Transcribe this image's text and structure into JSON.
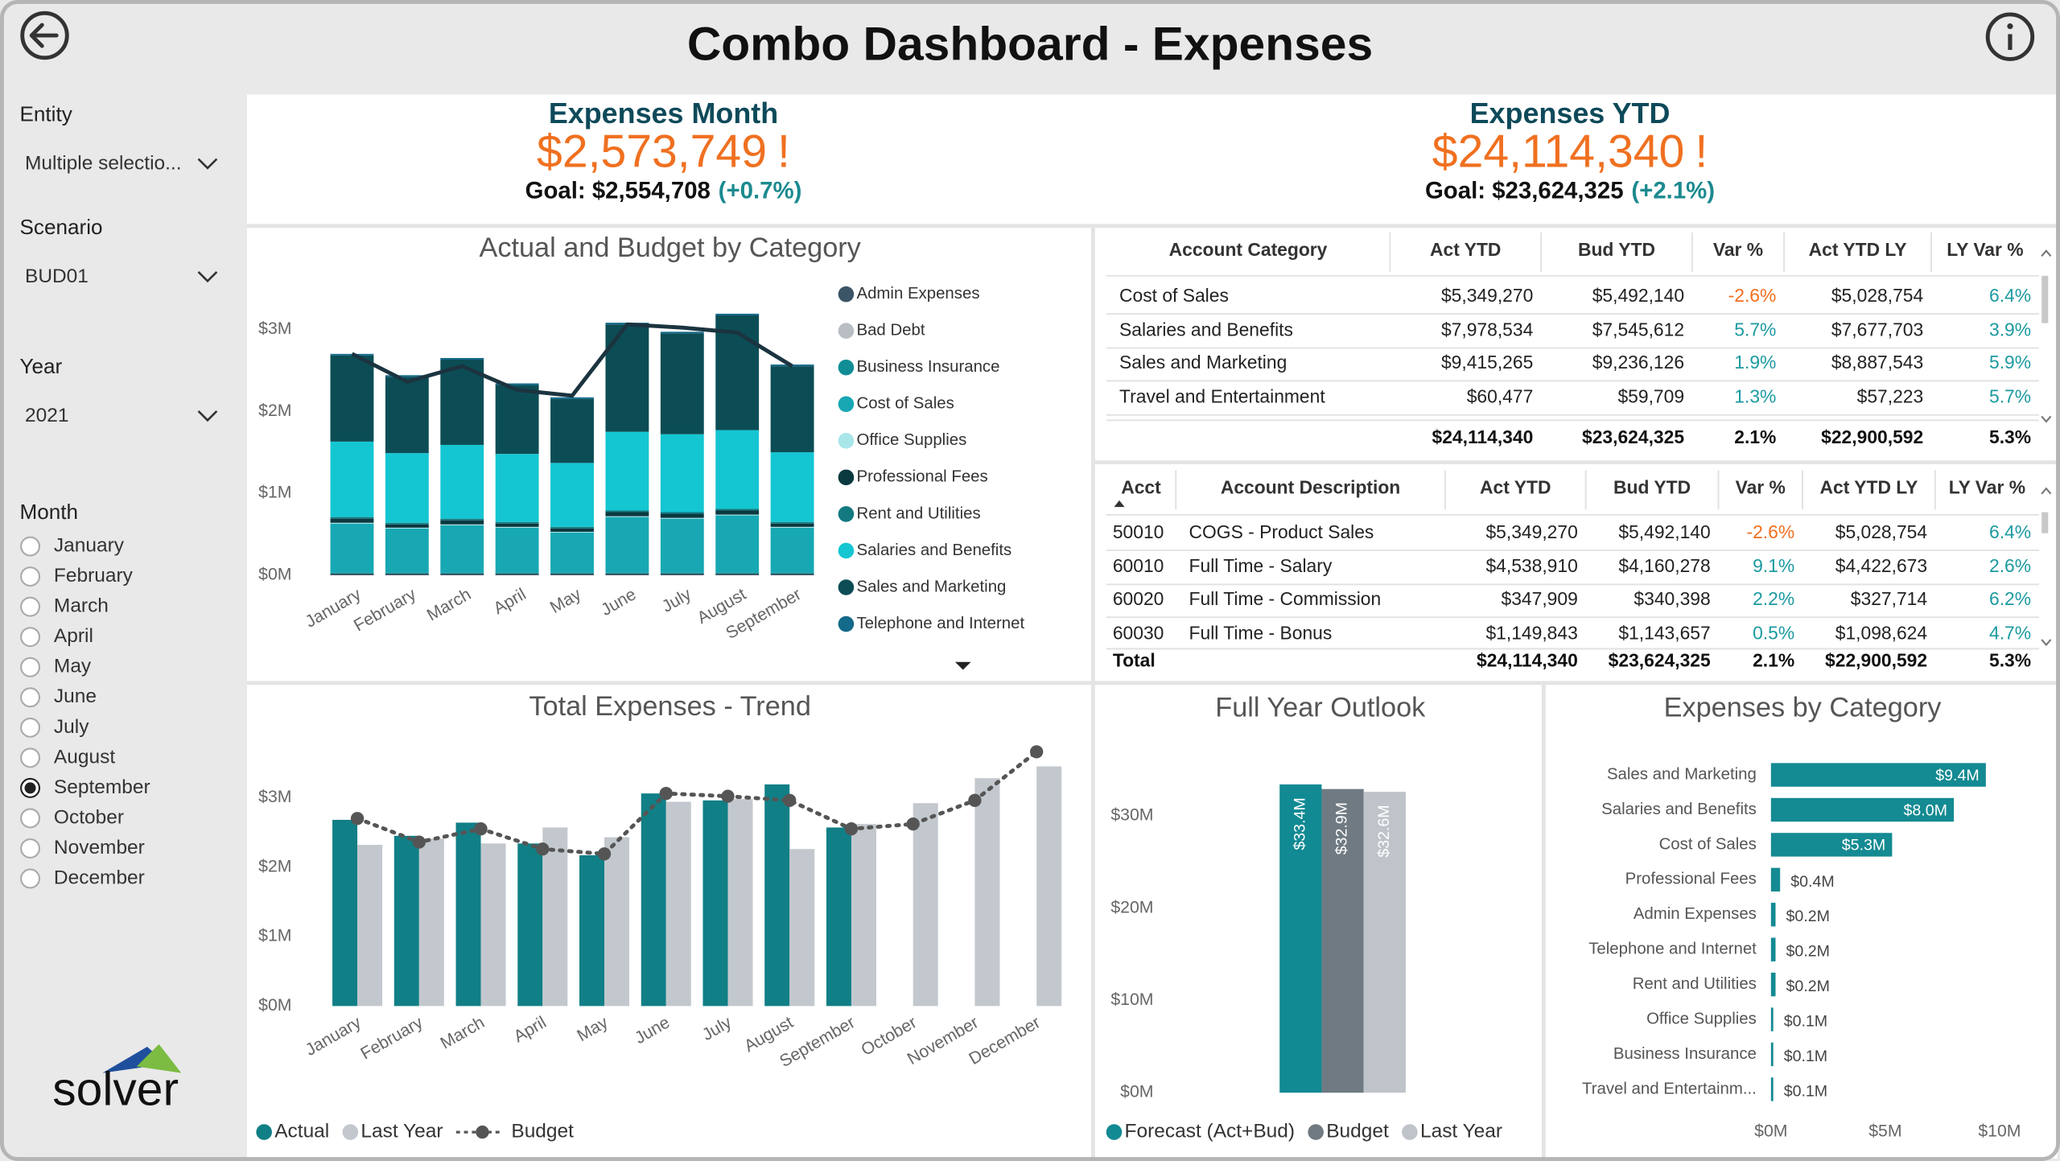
{
  "header": {
    "title": "Combo Dashboard - Expenses"
  },
  "slicers": {
    "entity": {
      "label": "Entity",
      "value": "Multiple selectio..."
    },
    "scenario": {
      "label": "Scenario",
      "value": "BUD01"
    },
    "year": {
      "label": "Year",
      "value": "2021"
    },
    "month": {
      "label": "Month",
      "options": [
        "January",
        "February",
        "March",
        "April",
        "May",
        "June",
        "July",
        "August",
        "September",
        "October",
        "November",
        "December"
      ],
      "selected": "September"
    }
  },
  "kpis": [
    {
      "title": "Expenses Month",
      "value": "$2,573,749",
      "alert": "!",
      "goal": "Goal: $2,554,708",
      "change": "(+0.7%)"
    },
    {
      "title": "Expenses YTD",
      "value": "$24,114,340",
      "alert": "!",
      "goal": "Goal: $23,624,325",
      "change": "(+2.1%)"
    }
  ],
  "tables": [
    {
      "columns": [
        "Account Category",
        "Act YTD",
        "Bud YTD",
        "Var %",
        "Act YTD LY",
        "LY Var %"
      ],
      "rows": [
        [
          "Cost of Sales",
          "$5,349,270",
          "$5,492,140",
          "-2.6%",
          "$5,028,754",
          "6.4%"
        ],
        [
          "Salaries and Benefits",
          "$7,978,534",
          "$7,545,612",
          "5.7%",
          "$7,677,703",
          "3.9%"
        ],
        [
          "Sales and Marketing",
          "$9,415,265",
          "$9,236,126",
          "1.9%",
          "$8,887,543",
          "5.9%"
        ],
        [
          "Travel and Entertainment",
          "$60,477",
          "$59,709",
          "1.3%",
          "$57,223",
          "5.7%"
        ]
      ],
      "total": [
        "$24,114,340",
        "$23,624,325",
        "2.1%",
        "$22,900,592",
        "5.3%"
      ]
    },
    {
      "columns": [
        "Acct",
        "Account Description",
        "Act YTD",
        "Bud YTD",
        "Var %",
        "Act YTD LY",
        "LY Var %"
      ],
      "rows": [
        [
          "50010",
          "COGS - Product Sales",
          "$5,349,270",
          "$5,492,140",
          "-2.6%",
          "$5,028,754",
          "6.4%"
        ],
        [
          "60010",
          "Full Time - Salary",
          "$4,538,910",
          "$4,160,278",
          "9.1%",
          "$4,422,673",
          "2.6%"
        ],
        [
          "60020",
          "Full Time - Commission",
          "$347,909",
          "$340,398",
          "2.2%",
          "$327,714",
          "6.2%"
        ],
        [
          "60030",
          "Full Time - Bonus",
          "$1,149,843",
          "$1,143,657",
          "0.5%",
          "$1,098,624",
          "4.7%"
        ]
      ],
      "total": [
        "Total",
        "$24,114,340",
        "$23,624,325",
        "2.1%",
        "$22,900,592",
        "5.3%"
      ]
    }
  ],
  "logo": {
    "text": "solver"
  },
  "chart_data": [
    {
      "type": "stacked_bar_line",
      "title": "Actual and Budget by Category",
      "categories": [
        "January",
        "February",
        "March",
        "April",
        "May",
        "June",
        "July",
        "August",
        "September"
      ],
      "series": [
        {
          "name": "Admin Expenses",
          "color": "#3b5566",
          "values": [
            0.02,
            0.02,
            0.02,
            0.02,
            0.02,
            0.02,
            0.02,
            0.02,
            0.02
          ]
        },
        {
          "name": "Bad Debt",
          "color": "#b8bec4",
          "values": [
            0,
            0,
            0,
            0,
            0,
            0,
            0,
            0,
            0
          ]
        },
        {
          "name": "Business Insurance",
          "color": "#118d96",
          "values": [
            0.01,
            0.01,
            0.01,
            0.01,
            0.01,
            0.01,
            0.01,
            0.01,
            0.01
          ]
        },
        {
          "name": "Cost of Sales",
          "color": "#17a8b3",
          "values": [
            0.6,
            0.54,
            0.58,
            0.55,
            0.49,
            0.68,
            0.66,
            0.7,
            0.55
          ]
        },
        {
          "name": "Office Supplies",
          "color": "#a9e6ea",
          "values": [
            0.01,
            0.01,
            0.01,
            0.01,
            0.01,
            0.01,
            0.01,
            0.01,
            0.01
          ]
        },
        {
          "name": "Professional Fees",
          "color": "#0b3940",
          "values": [
            0.05,
            0.04,
            0.05,
            0.04,
            0.04,
            0.05,
            0.05,
            0.05,
            0.04
          ]
        },
        {
          "name": "Rent and Utilities",
          "color": "#127a80",
          "values": [
            0.02,
            0.02,
            0.02,
            0.02,
            0.02,
            0.02,
            0.02,
            0.02,
            0.02
          ]
        },
        {
          "name": "Salaries and Benefits",
          "color": "#14c6d2",
          "values": [
            0.92,
            0.85,
            0.9,
            0.83,
            0.78,
            0.96,
            0.95,
            0.96,
            0.85
          ]
        },
        {
          "name": "Sales and Marketing",
          "color": "#0c4d55",
          "values": [
            1.05,
            0.93,
            1.04,
            0.84,
            0.78,
            1.31,
            1.23,
            1.4,
            1.05
          ]
        },
        {
          "name": "Telephone and Internet",
          "color": "#146a8a",
          "values": [
            0.02,
            0.02,
            0.02,
            0.02,
            0.02,
            0.02,
            0.02,
            0.02,
            0.02
          ]
        }
      ],
      "line": {
        "color": "#1b3440",
        "values": [
          2.7,
          2.36,
          2.55,
          2.26,
          2.19,
          3.06,
          3.02,
          2.96,
          2.55
        ]
      },
      "ylim": [
        0,
        3.3
      ],
      "yticks": [
        {
          "value": 0,
          "label": "$0M"
        },
        {
          "value": 1,
          "label": "$1M"
        },
        {
          "value": 2,
          "label": "$2M"
        },
        {
          "value": 3,
          "label": "$3M"
        }
      ]
    },
    {
      "type": "bar_line",
      "title": "Total Expenses - Trend",
      "categories": [
        "January",
        "February",
        "March",
        "April",
        "May",
        "June",
        "July",
        "August",
        "September",
        "October",
        "November",
        "December"
      ],
      "series": [
        {
          "name": "Actual",
          "type": "bar",
          "color": "#117f86",
          "values": [
            2.68,
            2.45,
            2.64,
            2.34,
            2.17,
            3.06,
            2.96,
            3.19,
            2.57,
            null,
            null,
            null
          ]
        },
        {
          "name": "Last Year",
          "type": "bar",
          "color": "#c3c8ce",
          "values": [
            2.32,
            2.41,
            2.34,
            2.57,
            2.43,
            2.94,
            2.98,
            2.26,
            2.62,
            2.92,
            3.28,
            3.45
          ]
        },
        {
          "name": "Budget",
          "type": "line",
          "color": "#555555",
          "values": [
            2.7,
            2.36,
            2.55,
            2.26,
            2.19,
            3.06,
            3.02,
            2.96,
            2.55,
            2.62,
            2.96,
            3.66
          ]
        }
      ],
      "ylim": [
        0,
        3.8
      ],
      "yticks": [
        {
          "value": 0,
          "label": "$0M"
        },
        {
          "value": 1,
          "label": "$1M"
        },
        {
          "value": 2,
          "label": "$2M"
        },
        {
          "value": 3,
          "label": "$3M"
        }
      ]
    },
    {
      "type": "bar",
      "title": "Full Year Outlook",
      "series": [
        {
          "name": "Forecast (Act+Bud)",
          "color": "#118a93",
          "values": [
            33.4
          ],
          "value_labels": [
            "$33.4M"
          ]
        },
        {
          "name": "Budget",
          "color": "#6f7a82",
          "values": [
            32.9
          ],
          "value_labels": [
            "$32.9M"
          ]
        },
        {
          "name": "Last Year",
          "color": "#bfc4ca",
          "values": [
            32.6
          ],
          "value_labels": [
            "$32.6M"
          ]
        }
      ],
      "ylim": [
        0,
        36
      ],
      "yticks": [
        {
          "value": 0,
          "label": "$0M"
        },
        {
          "value": 10,
          "label": "$10M"
        },
        {
          "value": 20,
          "label": "$20M"
        },
        {
          "value": 30,
          "label": "$30M"
        }
      ]
    },
    {
      "type": "hbar",
      "title": "Expenses by Category",
      "categories": [
        "Sales and Marketing",
        "Salaries and Benefits",
        "Cost of Sales",
        "Professional Fees",
        "Admin Expenses",
        "Telephone and Internet",
        "Rent and Utilities",
        "Office Supplies",
        "Business Insurance",
        "Travel and Entertainm..."
      ],
      "values": [
        9.4,
        8.0,
        5.3,
        0.4,
        0.2,
        0.2,
        0.2,
        0.1,
        0.1,
        0.1
      ],
      "value_labels": [
        "$9.4M",
        "$8.0M",
        "$5.3M",
        "$0.4M",
        "$0.2M",
        "$0.2M",
        "$0.2M",
        "$0.1M",
        "$0.1M",
        "$0.1M"
      ],
      "color": "#148a92",
      "xlim": [
        0,
        10
      ],
      "xticks": [
        {
          "value": 0,
          "label": "$0M"
        },
        {
          "value": 5,
          "label": "$5M"
        },
        {
          "value": 10,
          "label": "$10M"
        }
      ]
    }
  ]
}
